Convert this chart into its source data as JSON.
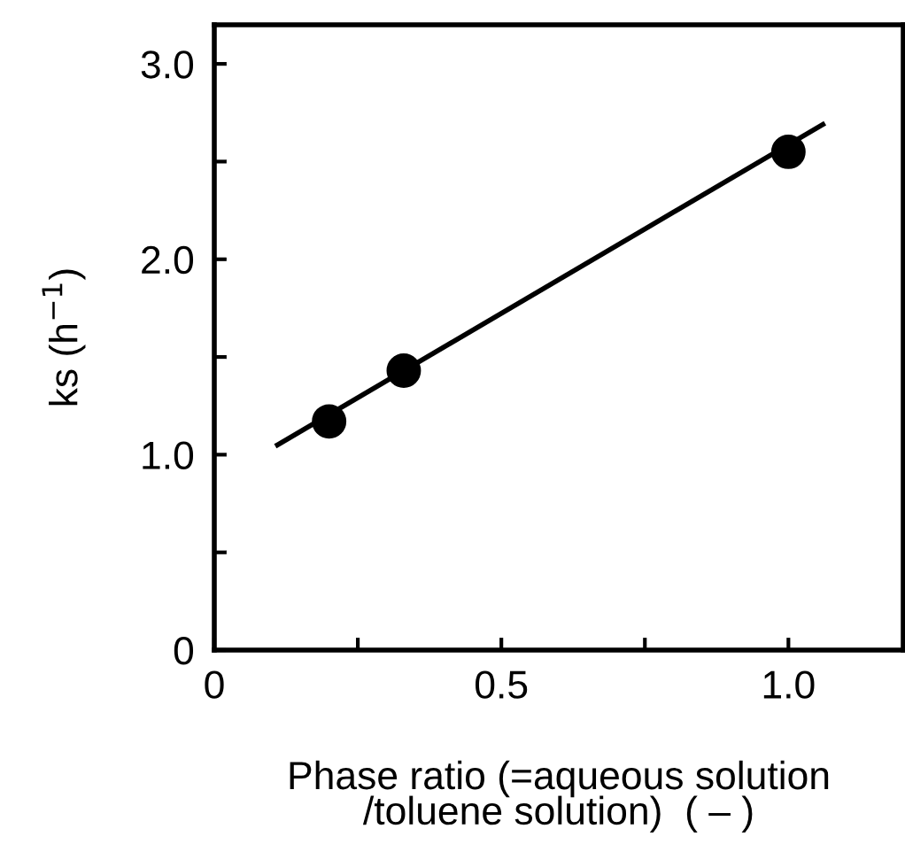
{
  "chart_data": {
    "type": "scatter",
    "xlabel": "Phase ratio (=aqueous solution\n/toluene solution)  ( – )",
    "ylabel": "ks (h$^{−1}$)",
    "series": [
      {
        "x": [
          0.2,
          0.33,
          1.0
        ],
        "values": [
          1.17,
          1.43,
          2.55
        ],
        "color": "#000000",
        "marker": "circle"
      },
      {
        "type": "line",
        "x": [
          0.11,
          1.06
        ],
        "values": [
          1.05,
          2.69
        ],
        "color": "#000000",
        "line_style": "solid"
      }
    ],
    "xlim": [
      0,
      1.2
    ],
    "ylim": [
      0,
      3.2
    ],
    "xticks": [
      {
        "value": 0,
        "label": "0"
      },
      {
        "value": 0.25,
        "label": null
      },
      {
        "value": 0.5,
        "label": "0.5"
      },
      {
        "value": 0.75,
        "label": null
      },
      {
        "value": 1.0,
        "label": "1.0"
      }
    ],
    "yticks": [
      {
        "value": 0,
        "label": "0"
      },
      {
        "value": 0.5,
        "label": null
      },
      {
        "value": 1.0,
        "label": "1.0"
      },
      {
        "value": 1.5,
        "label": null
      },
      {
        "value": 2.0,
        "label": "2.0"
      },
      {
        "value": 2.5,
        "label": null
      },
      {
        "value": 3.0,
        "label": "3.0"
      }
    ],
    "grid": false,
    "legend": false
  }
}
